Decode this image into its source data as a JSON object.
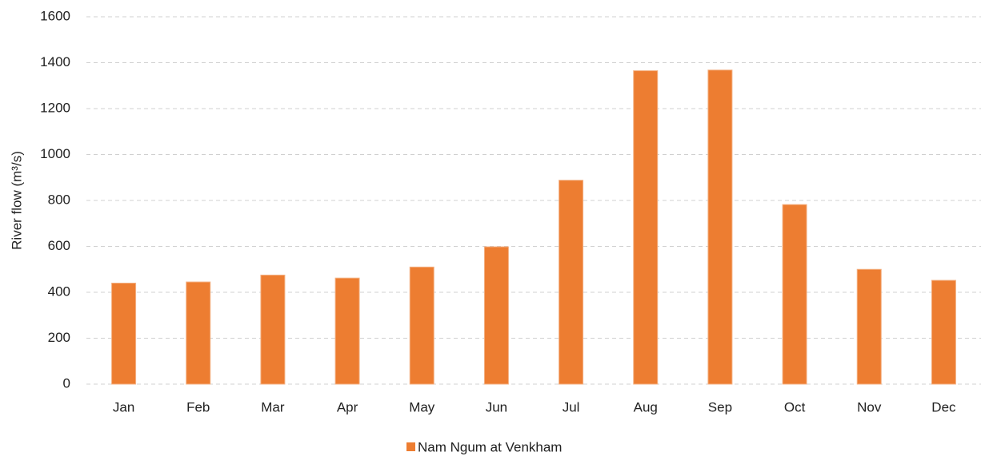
{
  "chart_data": {
    "type": "bar",
    "y_label": "River flow (m³/s)",
    "categories": [
      "Jan",
      "Feb",
      "Mar",
      "Apr",
      "May",
      "Jun",
      "Jul",
      "Aug",
      "Sep",
      "Oct",
      "Nov",
      "Dec"
    ],
    "series": [
      {
        "name": "Nam Ngum at Venkham",
        "color": "#ed7d31",
        "values": [
          440,
          445,
          475,
          462,
          510,
          598,
          888,
          1365,
          1368,
          782,
          500,
          452
        ]
      }
    ],
    "ylim": [
      0,
      1600
    ],
    "yticks": [
      0,
      200,
      400,
      600,
      800,
      1000,
      1200,
      1400,
      1600
    ],
    "grid": true,
    "legend": "bottom"
  }
}
